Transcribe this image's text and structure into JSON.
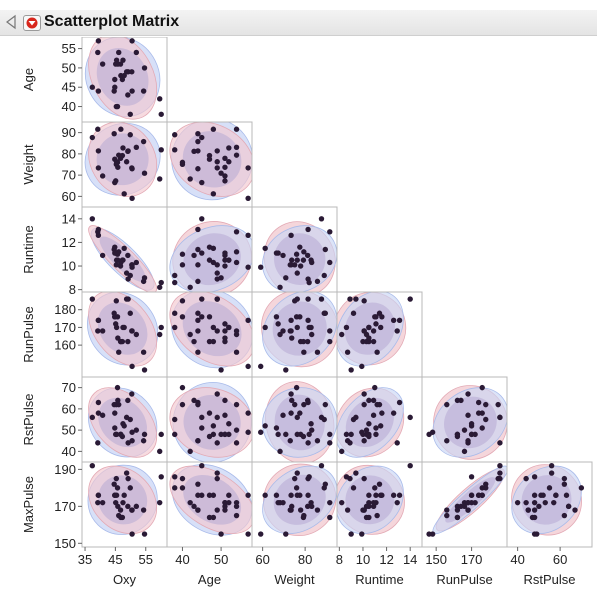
{
  "header": {
    "title": "Scatterplot Matrix"
  },
  "chart_data": {
    "type": "scatter",
    "matrix_layout": "lower-triangular",
    "variables": [
      {
        "name": "Oxy",
        "range": [
          34,
          62
        ],
        "ticks": [
          35,
          45,
          55
        ]
      },
      {
        "name": "Age",
        "range": [
          36,
          58
        ],
        "ticks": [
          40,
          45,
          50,
          55
        ]
      },
      {
        "name": "Weight",
        "range": [
          55,
          95
        ],
        "ticks": [
          60,
          70,
          80,
          90
        ]
      },
      {
        "name": "Runtime",
        "range": [
          7.8,
          15
        ],
        "ticks": [
          8,
          10,
          12,
          14
        ]
      },
      {
        "name": "RunPulse",
        "range": [
          142,
          190
        ],
        "ticks": [
          150,
          160,
          170,
          180
        ]
      },
      {
        "name": "RstPulse",
        "range": [
          35,
          75
        ],
        "ticks": [
          40,
          50,
          60,
          70
        ]
      },
      {
        "name": "MaxPulse",
        "range": [
          148,
          194
        ],
        "ticks": [
          150,
          170,
          190
        ]
      }
    ],
    "x_tick_labels": {
      "Oxy": [
        "35",
        "45",
        "55"
      ],
      "Age": [
        "40",
        "50"
      ],
      "Weight": [
        "60",
        "80"
      ],
      "Runtime": [
        "8",
        "10",
        "12",
        "14"
      ],
      "RunPulse": [
        "150",
        "170"
      ],
      "RstPulse": [
        "40",
        "60"
      ]
    },
    "y_tick_labels": {
      "Age": [
        "40",
        "45",
        "50",
        "55"
      ],
      "Weight": [
        "60",
        "70",
        "80",
        "90"
      ],
      "Runtime": [
        "8",
        "10",
        "12",
        "14"
      ],
      "RunPulse": [
        "160",
        "170",
        "180"
      ],
      "RstPulse": [
        "40",
        "50",
        "60",
        "70"
      ],
      "MaxPulse": [
        "150",
        "170",
        "190"
      ]
    },
    "records": [
      [
        44.6,
        44,
        89.5,
        11.4,
        178,
        62,
        182
      ],
      [
        45.3,
        40,
        75.1,
        10.1,
        185,
        62,
        185
      ],
      [
        54.3,
        44,
        85.8,
        8.7,
        156,
        45,
        168
      ],
      [
        59.6,
        42,
        68.2,
        8.2,
        166,
        40,
        172
      ],
      [
        49.9,
        38,
        89.0,
        9.2,
        178,
        55,
        180
      ],
      [
        44.8,
        47,
        77.5,
        11.6,
        176,
        58,
        176
      ],
      [
        45.7,
        40,
        76.0,
        11.0,
        176,
        70,
        180
      ],
      [
        49.1,
        43,
        81.2,
        10.9,
        162,
        64,
        170
      ],
      [
        39.4,
        44,
        81.4,
        13.1,
        174,
        63,
        176
      ],
      [
        60.1,
        38,
        81.9,
        8.6,
        170,
        48,
        186
      ],
      [
        50.5,
        44,
        73.0,
        10.1,
        168,
        45,
        168
      ],
      [
        37.4,
        45,
        87.7,
        14.0,
        186,
        56,
        192
      ],
      [
        44.8,
        45,
        66.5,
        11.1,
        176,
        51,
        176
      ],
      [
        47.3,
        47,
        79.2,
        10.5,
        162,
        47,
        164
      ],
      [
        51.9,
        54,
        83.1,
        10.3,
        166,
        50,
        170
      ],
      [
        49.2,
        49,
        81.4,
        8.9,
        186,
        44,
        185
      ],
      [
        40.8,
        51,
        69.6,
        10.9,
        168,
        57,
        172
      ],
      [
        46.7,
        51,
        77.9,
        10.0,
        162,
        48,
        168
      ],
      [
        46.8,
        48,
        91.6,
        10.3,
        162,
        48,
        164
      ],
      [
        50.4,
        49,
        73.4,
        10.1,
        168,
        67,
        168
      ],
      [
        39.4,
        57,
        73.4,
        12.6,
        174,
        58,
        176
      ],
      [
        46.1,
        54,
        79.4,
        11.2,
        156,
        62,
        165
      ],
      [
        45.4,
        52,
        76.3,
        10.5,
        170,
        48,
        176
      ],
      [
        54.6,
        50,
        70.9,
        9.0,
        146,
        48,
        155
      ],
      [
        45.1,
        51,
        67.3,
        11.1,
        172,
        48,
        172
      ],
      [
        39.2,
        54,
        91.6,
        12.9,
        168,
        44,
        172
      ],
      [
        45.8,
        51,
        73.7,
        10.5,
        164,
        64,
        170
      ],
      [
        50.5,
        57,
        59.1,
        9.9,
        148,
        49,
        155
      ],
      [
        48.7,
        49,
        76.3,
        9.4,
        186,
        56,
        188
      ],
      [
        47.9,
        48,
        61.2,
        11.5,
        170,
        52,
        176
      ],
      [
        47.5,
        52,
        82.8,
        10.5,
        170,
        53,
        172
      ]
    ],
    "density_ellipses": true,
    "colors": {
      "ellipse_positive": "#c9d6f5",
      "ellipse_negative": "#f2c8cf",
      "ellipse_overlap": "#b7a9d4",
      "points": "#2a1a35"
    }
  }
}
